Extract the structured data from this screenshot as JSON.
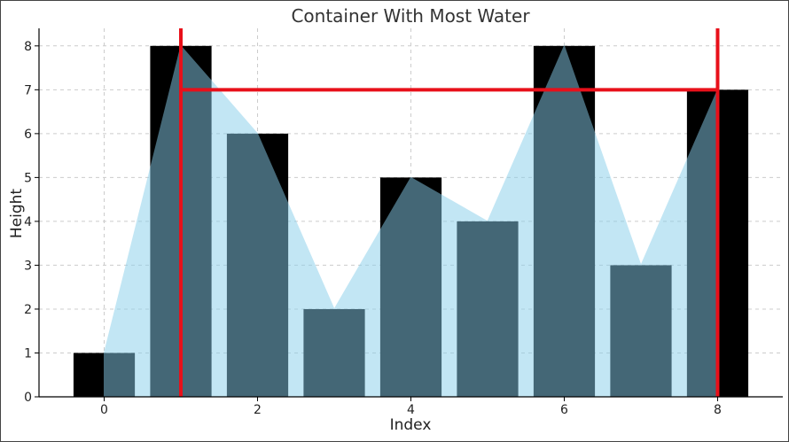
{
  "chart_data": {
    "type": "bar",
    "title": "Container With Most Water",
    "xlabel": "Index",
    "ylabel": "Height",
    "categories": [
      0,
      1,
      2,
      3,
      4,
      5,
      6,
      7,
      8
    ],
    "values": [
      1,
      8,
      6,
      2,
      5,
      4,
      8,
      3,
      7
    ],
    "xticks": [
      0,
      2,
      4,
      6,
      8
    ],
    "yticks": [
      0,
      1,
      2,
      3,
      4,
      5,
      6,
      7,
      8
    ],
    "xlim": [
      -0.85,
      8.85
    ],
    "ylim": [
      0,
      8.4
    ],
    "grid": true,
    "container": {
      "left_index": 1,
      "right_index": 8,
      "water_height": 7
    },
    "colors": {
      "bar": "#000000",
      "water_fill": "#87ceeb",
      "container_line": "#e8101a",
      "grid": "#cccccc",
      "axis": "#000000"
    }
  }
}
